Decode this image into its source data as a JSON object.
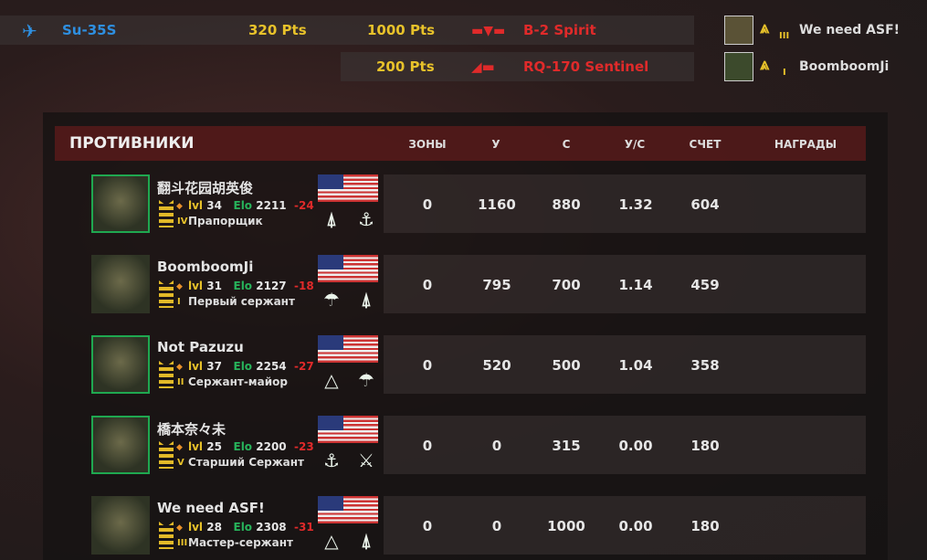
{
  "top": {
    "player_aircraft": "Su-35S",
    "player_points": "320 Pts",
    "kills": [
      {
        "points": "1000 Pts",
        "target": "B-2 Spirit"
      },
      {
        "points": "200 Pts",
        "target": "RQ-170 Sentinel"
      }
    ],
    "players": [
      {
        "name": "We need ASF!",
        "tier": "III"
      },
      {
        "name": "BoomboomJi",
        "tier": "I"
      }
    ]
  },
  "table": {
    "title": "ПРОТИВНИКИ",
    "columns": [
      "ЗОНЫ",
      "У",
      "С",
      "У/С",
      "СЧЕТ",
      "НАГРАДЫ"
    ],
    "rows": [
      {
        "name": "翻斗花园胡英俊",
        "lvl_label": "lvl",
        "lvl": "34",
        "elo_label": "Elo",
        "elo": "2211",
        "delta": "-24",
        "tier": "IV",
        "rank": "Прапорщик",
        "zones": "0",
        "kills": "1160",
        "deaths": "880",
        "kd": "1.32",
        "score": "604",
        "selected": true,
        "badges": [
          "infantry-icon",
          "usmc-icon"
        ]
      },
      {
        "name": "BoomboomJi",
        "lvl_label": "lvl",
        "lvl": "31",
        "elo_label": "Elo",
        "elo": "2127",
        "delta": "-18",
        "tier": "I",
        "rank": "Первый сержант",
        "zones": "0",
        "kills": "795",
        "deaths": "700",
        "kd": "1.14",
        "score": "459",
        "selected": false,
        "badges": [
          "airborne-icon",
          "infantry-icon"
        ]
      },
      {
        "name": "Not Pazuzu",
        "lvl_label": "lvl",
        "lvl": "37",
        "elo_label": "Elo",
        "elo": "2254",
        "delta": "-27",
        "tier": "II",
        "rank": "Сержант-майор",
        "zones": "0",
        "kills": "520",
        "deaths": "500",
        "kd": "1.04",
        "score": "358",
        "selected": true,
        "badges": [
          "armor-icon",
          "airborne-icon"
        ]
      },
      {
        "name": "橋本奈々未",
        "lvl_label": "lvl",
        "lvl": "25",
        "elo_label": "Elo",
        "elo": "2200",
        "delta": "-23",
        "tier": "V",
        "rank": "Старший Сержант",
        "zones": "0",
        "kills": "0",
        "deaths": "315",
        "kd": "0.00",
        "score": "180",
        "selected": true,
        "badges": [
          "usmc-icon",
          "cavalry-icon"
        ]
      },
      {
        "name": "We need ASF!",
        "lvl_label": "lvl",
        "lvl": "28",
        "elo_label": "Elo",
        "elo": "2308",
        "delta": "-31",
        "tier": "III",
        "rank": "Мастер-сержант",
        "zones": "0",
        "kills": "0",
        "deaths": "1000",
        "kd": "0.00",
        "score": "180",
        "selected": false,
        "badges": [
          "armor-icon",
          "infantry-icon"
        ]
      }
    ]
  },
  "colors": {
    "accent_yellow": "#e8c22a",
    "enemy_red": "#e02a2a",
    "player_blue": "#2e8fe0",
    "elo_green": "#27b35b"
  }
}
